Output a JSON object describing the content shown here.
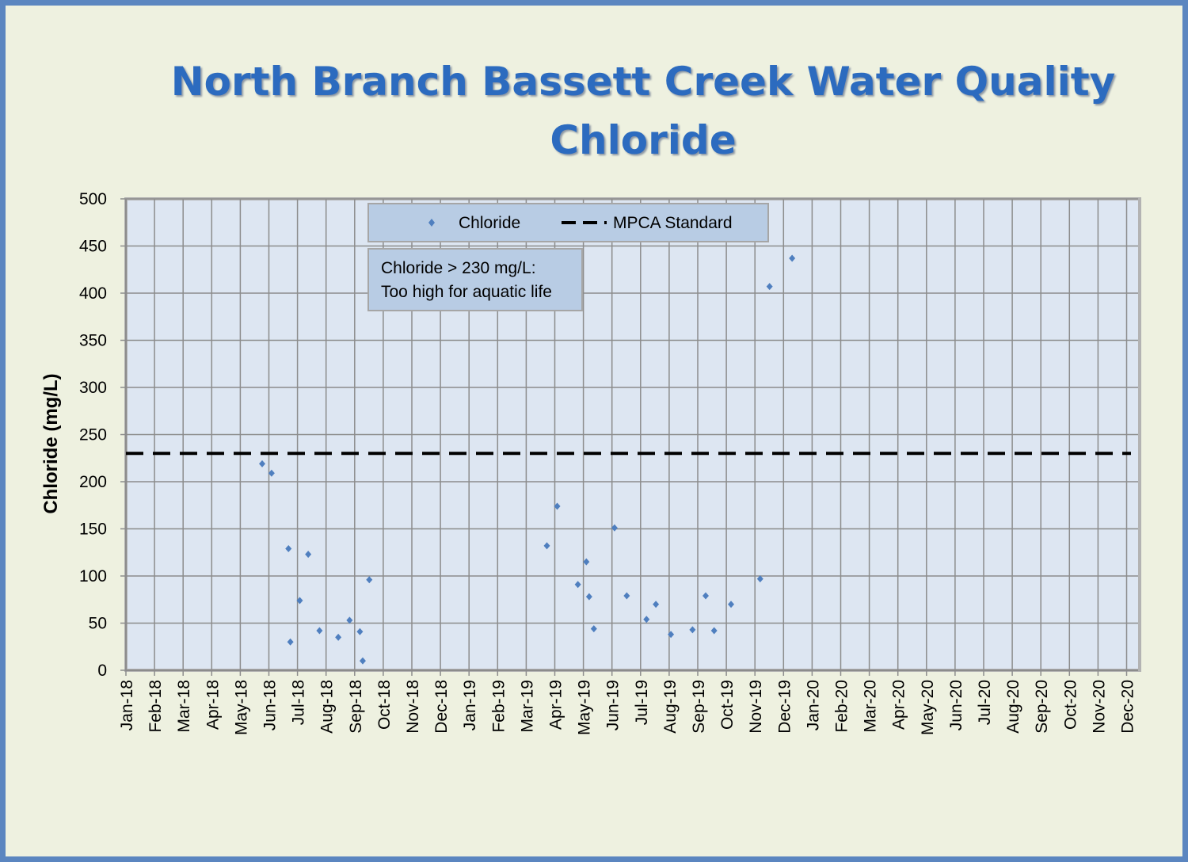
{
  "title_line1": "North Branch Bassett Creek Water Quality",
  "title_line2": "Chloride",
  "annotation": {
    "line1": "Chloride > 230 mg/L:",
    "line2": "Too high for aquatic life"
  },
  "colors": {
    "points": "#4f7fbf",
    "standard": "#000000",
    "plot_bg": "#dde6f2",
    "frame": "#5b86c0"
  },
  "chart_data": {
    "type": "scatter",
    "title": "North Branch Bassett Creek Water Quality Chloride",
    "xlabel": "",
    "ylabel": "Chloride (mg/L)",
    "ylim": [
      0,
      500
    ],
    "y_ticks": [
      0,
      50,
      100,
      150,
      200,
      250,
      300,
      350,
      400,
      450,
      500
    ],
    "xlim": [
      "2018-01-01",
      "2020-12-01"
    ],
    "x_ticks": [
      "Jan-18",
      "Feb-18",
      "Mar-18",
      "Apr-18",
      "May-18",
      "Jun-18",
      "Jul-18",
      "Aug-18",
      "Sep-18",
      "Oct-18",
      "Nov-18",
      "Dec-18",
      "Jan-19",
      "Feb-19",
      "Mar-19",
      "Apr-19",
      "May-19",
      "Jun-19",
      "Jul-19",
      "Aug-19",
      "Sep-19",
      "Oct-19",
      "Nov-19",
      "Dec-19",
      "Jan-20",
      "Feb-20",
      "Mar-20",
      "Apr-20",
      "May-20",
      "Jun-20",
      "Jul-20",
      "Aug-20",
      "Sep-20",
      "Oct-20",
      "Nov-20",
      "Dec-20"
    ],
    "grid": true,
    "legend": "top-center",
    "series": [
      {
        "name": "Chloride",
        "marker": "diamond",
        "points": [
          {
            "x": "2018-05-26",
            "y": 219
          },
          {
            "x": "2018-06-05",
            "y": 209
          },
          {
            "x": "2018-06-23",
            "y": 129
          },
          {
            "x": "2018-06-25",
            "y": 30
          },
          {
            "x": "2018-07-05",
            "y": 74
          },
          {
            "x": "2018-07-14",
            "y": 123
          },
          {
            "x": "2018-07-26",
            "y": 42
          },
          {
            "x": "2018-08-15",
            "y": 35
          },
          {
            "x": "2018-08-27",
            "y": 53
          },
          {
            "x": "2018-09-07",
            "y": 41
          },
          {
            "x": "2018-09-10",
            "y": 10
          },
          {
            "x": "2018-09-17",
            "y": 96
          },
          {
            "x": "2019-03-25",
            "y": 132
          },
          {
            "x": "2019-04-05",
            "y": 174
          },
          {
            "x": "2019-04-27",
            "y": 91
          },
          {
            "x": "2019-05-06",
            "y": 115
          },
          {
            "x": "2019-05-09",
            "y": 78
          },
          {
            "x": "2019-05-14",
            "y": 44
          },
          {
            "x": "2019-06-05",
            "y": 151
          },
          {
            "x": "2019-06-18",
            "y": 79
          },
          {
            "x": "2019-07-09",
            "y": 54
          },
          {
            "x": "2019-07-19",
            "y": 70
          },
          {
            "x": "2019-08-04",
            "y": 38
          },
          {
            "x": "2019-08-27",
            "y": 43
          },
          {
            "x": "2019-09-10",
            "y": 79
          },
          {
            "x": "2019-09-19",
            "y": 42
          },
          {
            "x": "2019-10-07",
            "y": 70
          },
          {
            "x": "2019-11-07",
            "y": 97
          },
          {
            "x": "2019-11-17",
            "y": 407
          },
          {
            "x": "2019-12-11",
            "y": 437
          }
        ]
      },
      {
        "name": "MPCA Standard",
        "line_style": "dashed",
        "value": 230
      }
    ]
  }
}
